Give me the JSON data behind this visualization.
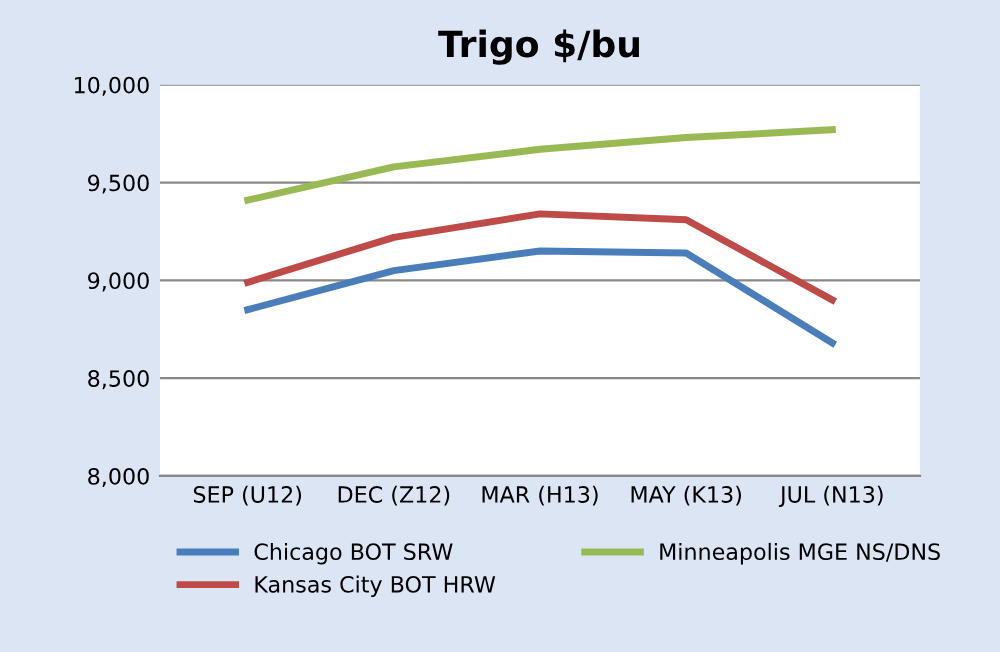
{
  "chart_data": {
    "type": "line",
    "title": "Trigo $/bu",
    "categories": [
      "SEP (U12)",
      "DEC (Z12)",
      "MAR (H13)",
      "MAY (K13)",
      "JUL (N13)"
    ],
    "series": [
      {
        "name": "Chicago BOT SRW",
        "color": "#4a7ebb",
        "values": [
          8850,
          9050,
          9150,
          9140,
          8680
        ]
      },
      {
        "name": "Kansas City BOT HRW",
        "color": "#be4b48",
        "values": [
          8990,
          9220,
          9340,
          9310,
          8900
        ]
      },
      {
        "name": "Minneapolis MGE NS/DNS",
        "color": "#98b954",
        "values": [
          9410,
          9580,
          9670,
          9730,
          9770
        ]
      }
    ],
    "ylim": [
      8000,
      10000
    ],
    "yticks": [
      {
        "value": 8000,
        "label": "8,000"
      },
      {
        "value": 8500,
        "label": "8,500"
      },
      {
        "value": 9000,
        "label": "9,000"
      },
      {
        "value": 9500,
        "label": "9,500"
      },
      {
        "value": 10000,
        "label": "10,000"
      }
    ],
    "grid": "y",
    "legend": "bottom",
    "marker": "none",
    "line_style": "solid"
  }
}
